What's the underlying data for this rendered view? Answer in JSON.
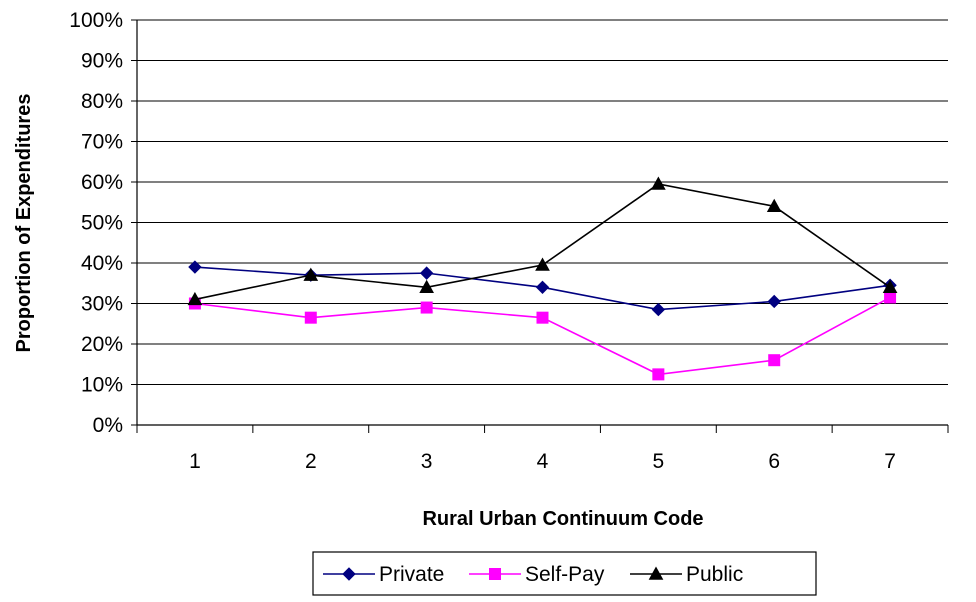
{
  "chart_data": {
    "type": "line",
    "title": "",
    "xlabel": "Rural Urban Continuum Code",
    "ylabel": "Proportion of Expenditures",
    "categories": [
      "1",
      "2",
      "3",
      "4",
      "5",
      "6",
      "7"
    ],
    "ylim": [
      0,
      100
    ],
    "y_ticks": [
      "0%",
      "10%",
      "20%",
      "30%",
      "40%",
      "50%",
      "60%",
      "70%",
      "80%",
      "90%",
      "100%"
    ],
    "grid": true,
    "legend_position": "bottom",
    "series": [
      {
        "name": "Private",
        "color": "#000080",
        "marker": "diamond",
        "values": [
          39,
          37,
          37.5,
          34,
          28.5,
          30.5,
          34.5
        ]
      },
      {
        "name": "Self-Pay",
        "color": "#ff00ff",
        "marker": "square",
        "values": [
          30,
          26.5,
          29,
          26.5,
          12.5,
          16,
          31.5
        ]
      },
      {
        "name": "Public",
        "color": "#000000",
        "marker": "triangle",
        "values": [
          31,
          37,
          34,
          39.5,
          59.5,
          54,
          34
        ]
      }
    ]
  }
}
